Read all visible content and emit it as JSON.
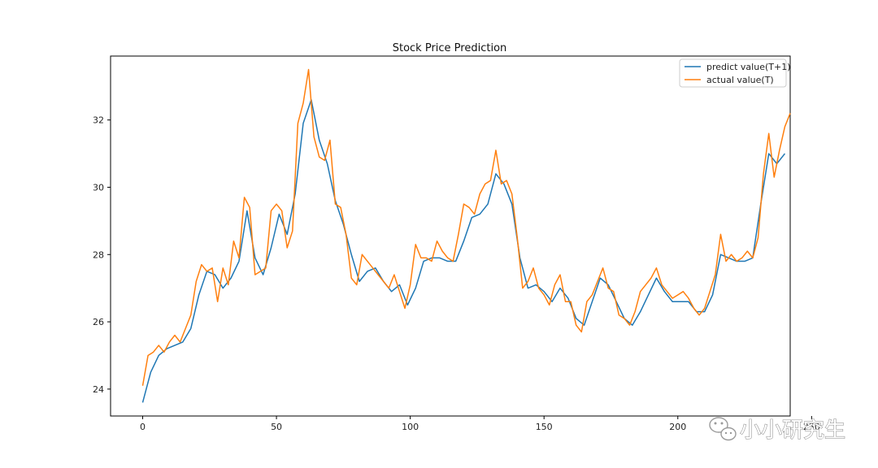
{
  "chart_data": {
    "type": "line",
    "title": "Stock Price Prediction",
    "xlabel": "",
    "ylabel": "",
    "xlim": [
      -12,
      242
    ],
    "ylim": [
      23.2,
      33.9
    ],
    "x_ticks": [
      0,
      50,
      100,
      150,
      200,
      250
    ],
    "y_ticks": [
      24,
      26,
      28,
      30,
      32
    ],
    "grid": false,
    "legend_position": "top-right",
    "series": [
      {
        "name": "predict value(T+1)",
        "color": "#1f77b4",
        "points": [
          [
            0,
            23.6
          ],
          [
            3,
            24.5
          ],
          [
            6,
            25.0
          ],
          [
            9,
            25.2
          ],
          [
            12,
            25.3
          ],
          [
            15,
            25.4
          ],
          [
            18,
            25.8
          ],
          [
            21,
            26.8
          ],
          [
            24,
            27.5
          ],
          [
            27,
            27.4
          ],
          [
            30,
            27.0
          ],
          [
            33,
            27.3
          ],
          [
            36,
            27.8
          ],
          [
            39,
            29.3
          ],
          [
            42,
            27.9
          ],
          [
            45,
            27.4
          ],
          [
            48,
            28.2
          ],
          [
            51,
            29.2
          ],
          [
            54,
            28.6
          ],
          [
            57,
            29.8
          ],
          [
            60,
            31.9
          ],
          [
            63,
            32.6
          ],
          [
            66,
            31.4
          ],
          [
            69,
            30.7
          ],
          [
            72,
            29.6
          ],
          [
            75,
            28.9
          ],
          [
            78,
            28.0
          ],
          [
            81,
            27.2
          ],
          [
            84,
            27.5
          ],
          [
            87,
            27.6
          ],
          [
            90,
            27.2
          ],
          [
            93,
            26.9
          ],
          [
            96,
            27.1
          ],
          [
            99,
            26.5
          ],
          [
            102,
            27.0
          ],
          [
            105,
            27.8
          ],
          [
            108,
            27.9
          ],
          [
            111,
            27.9
          ],
          [
            114,
            27.8
          ],
          [
            117,
            27.8
          ],
          [
            120,
            28.4
          ],
          [
            123,
            29.1
          ],
          [
            126,
            29.2
          ],
          [
            129,
            29.5
          ],
          [
            132,
            30.4
          ],
          [
            135,
            30.1
          ],
          [
            138,
            29.5
          ],
          [
            141,
            27.9
          ],
          [
            144,
            27.0
          ],
          [
            147,
            27.1
          ],
          [
            150,
            26.9
          ],
          [
            153,
            26.6
          ],
          [
            156,
            27.0
          ],
          [
            159,
            26.7
          ],
          [
            162,
            26.1
          ],
          [
            165,
            25.9
          ],
          [
            168,
            26.6
          ],
          [
            171,
            27.3
          ],
          [
            174,
            27.1
          ],
          [
            177,
            26.6
          ],
          [
            180,
            26.1
          ],
          [
            183,
            25.9
          ],
          [
            186,
            26.3
          ],
          [
            189,
            26.8
          ],
          [
            192,
            27.3
          ],
          [
            195,
            26.9
          ],
          [
            198,
            26.6
          ],
          [
            201,
            26.6
          ],
          [
            204,
            26.6
          ],
          [
            207,
            26.3
          ],
          [
            210,
            26.3
          ],
          [
            213,
            26.8
          ],
          [
            216,
            28.0
          ],
          [
            219,
            27.9
          ],
          [
            222,
            27.8
          ],
          [
            225,
            27.8
          ],
          [
            228,
            27.9
          ],
          [
            231,
            29.5
          ],
          [
            234,
            31.0
          ],
          [
            237,
            30.7
          ],
          [
            240,
            31.0
          ]
        ]
      },
      {
        "name": "actual value(T)",
        "color": "#ff7f0e",
        "points": [
          [
            0,
            24.1
          ],
          [
            2,
            25.0
          ],
          [
            4,
            25.1
          ],
          [
            6,
            25.3
          ],
          [
            8,
            25.1
          ],
          [
            10,
            25.4
          ],
          [
            12,
            25.6
          ],
          [
            14,
            25.4
          ],
          [
            16,
            25.8
          ],
          [
            18,
            26.2
          ],
          [
            20,
            27.2
          ],
          [
            22,
            27.7
          ],
          [
            24,
            27.5
          ],
          [
            26,
            27.6
          ],
          [
            28,
            26.6
          ],
          [
            30,
            27.6
          ],
          [
            32,
            27.1
          ],
          [
            34,
            28.4
          ],
          [
            36,
            27.9
          ],
          [
            38,
            29.7
          ],
          [
            40,
            29.4
          ],
          [
            42,
            27.4
          ],
          [
            44,
            27.5
          ],
          [
            46,
            27.6
          ],
          [
            48,
            29.3
          ],
          [
            50,
            29.5
          ],
          [
            52,
            29.3
          ],
          [
            54,
            28.2
          ],
          [
            56,
            28.7
          ],
          [
            58,
            31.9
          ],
          [
            60,
            32.5
          ],
          [
            62,
            33.5
          ],
          [
            64,
            31.5
          ],
          [
            66,
            30.9
          ],
          [
            68,
            30.8
          ],
          [
            70,
            31.4
          ],
          [
            72,
            29.5
          ],
          [
            74,
            29.4
          ],
          [
            76,
            28.6
          ],
          [
            78,
            27.3
          ],
          [
            80,
            27.1
          ],
          [
            82,
            28.0
          ],
          [
            84,
            27.8
          ],
          [
            86,
            27.6
          ],
          [
            88,
            27.4
          ],
          [
            90,
            27.2
          ],
          [
            92,
            27.0
          ],
          [
            94,
            27.4
          ],
          [
            96,
            26.9
          ],
          [
            98,
            26.4
          ],
          [
            100,
            27.1
          ],
          [
            102,
            28.3
          ],
          [
            104,
            27.9
          ],
          [
            106,
            27.9
          ],
          [
            108,
            27.8
          ],
          [
            110,
            28.4
          ],
          [
            112,
            28.1
          ],
          [
            114,
            27.9
          ],
          [
            116,
            27.8
          ],
          [
            118,
            28.6
          ],
          [
            120,
            29.5
          ],
          [
            122,
            29.4
          ],
          [
            124,
            29.2
          ],
          [
            126,
            29.8
          ],
          [
            128,
            30.1
          ],
          [
            130,
            30.2
          ],
          [
            132,
            31.1
          ],
          [
            134,
            30.1
          ],
          [
            136,
            30.2
          ],
          [
            138,
            29.8
          ],
          [
            140,
            28.5
          ],
          [
            142,
            27.0
          ],
          [
            144,
            27.2
          ],
          [
            146,
            27.6
          ],
          [
            148,
            27.0
          ],
          [
            150,
            26.8
          ],
          [
            152,
            26.5
          ],
          [
            154,
            27.1
          ],
          [
            156,
            27.4
          ],
          [
            158,
            26.6
          ],
          [
            160,
            26.6
          ],
          [
            162,
            25.9
          ],
          [
            164,
            25.7
          ],
          [
            166,
            26.6
          ],
          [
            168,
            26.8
          ],
          [
            170,
            27.2
          ],
          [
            172,
            27.6
          ],
          [
            174,
            27.0
          ],
          [
            176,
            26.9
          ],
          [
            178,
            26.2
          ],
          [
            180,
            26.1
          ],
          [
            182,
            25.9
          ],
          [
            184,
            26.3
          ],
          [
            186,
            26.9
          ],
          [
            188,
            27.1
          ],
          [
            190,
            27.3
          ],
          [
            192,
            27.6
          ],
          [
            194,
            27.1
          ],
          [
            196,
            26.9
          ],
          [
            198,
            26.7
          ],
          [
            200,
            26.8
          ],
          [
            202,
            26.9
          ],
          [
            204,
            26.7
          ],
          [
            206,
            26.4
          ],
          [
            208,
            26.2
          ],
          [
            210,
            26.4
          ],
          [
            212,
            26.9
          ],
          [
            214,
            27.4
          ],
          [
            216,
            28.6
          ],
          [
            218,
            27.8
          ],
          [
            220,
            28.0
          ],
          [
            222,
            27.8
          ],
          [
            224,
            27.9
          ],
          [
            226,
            28.1
          ],
          [
            228,
            27.9
          ],
          [
            230,
            28.5
          ],
          [
            232,
            30.4
          ],
          [
            234,
            31.6
          ],
          [
            236,
            30.3
          ],
          [
            238,
            31.1
          ],
          [
            240,
            31.8
          ],
          [
            242,
            32.2
          ]
        ]
      }
    ]
  },
  "watermark": {
    "icon": "wechat-icon",
    "text": "小小研究生"
  }
}
